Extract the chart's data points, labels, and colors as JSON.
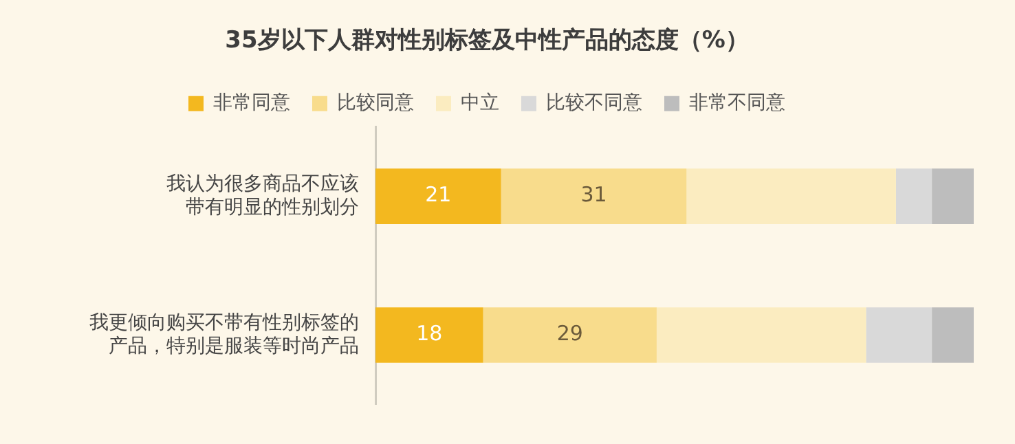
{
  "chart_data": {
    "type": "bar",
    "orientation": "horizontal",
    "stacked": true,
    "title": "35岁以下人群对性别标签及中性产品的态度（%）",
    "categories": [
      "我认为很多商品不应该带有明显的性别划分",
      "我更倾向购买不带有性别标签的产品，特别是服装等时尚产品"
    ],
    "xlim": [
      0,
      100
    ],
    "tick_labels": "y",
    "grid": false,
    "legend": "top",
    "series": [
      {
        "name": "非常同意",
        "color": "#f3b81f",
        "values": [
          21,
          18
        ],
        "value_labels": [
          "21",
          "18"
        ]
      },
      {
        "name": "比较同意",
        "color": "#f8dc8c",
        "values": [
          31,
          29
        ],
        "value_labels": [
          "31",
          "29"
        ]
      },
      {
        "name": "中立",
        "color": "#fbecc0",
        "values": [
          35,
          35
        ]
      },
      {
        "name": "比较不同意",
        "color": "#d9d9d9",
        "values": [
          6,
          11
        ]
      },
      {
        "name": "非常不同意",
        "color": "#bdbdbd",
        "values": [
          7,
          7
        ]
      }
    ]
  }
}
